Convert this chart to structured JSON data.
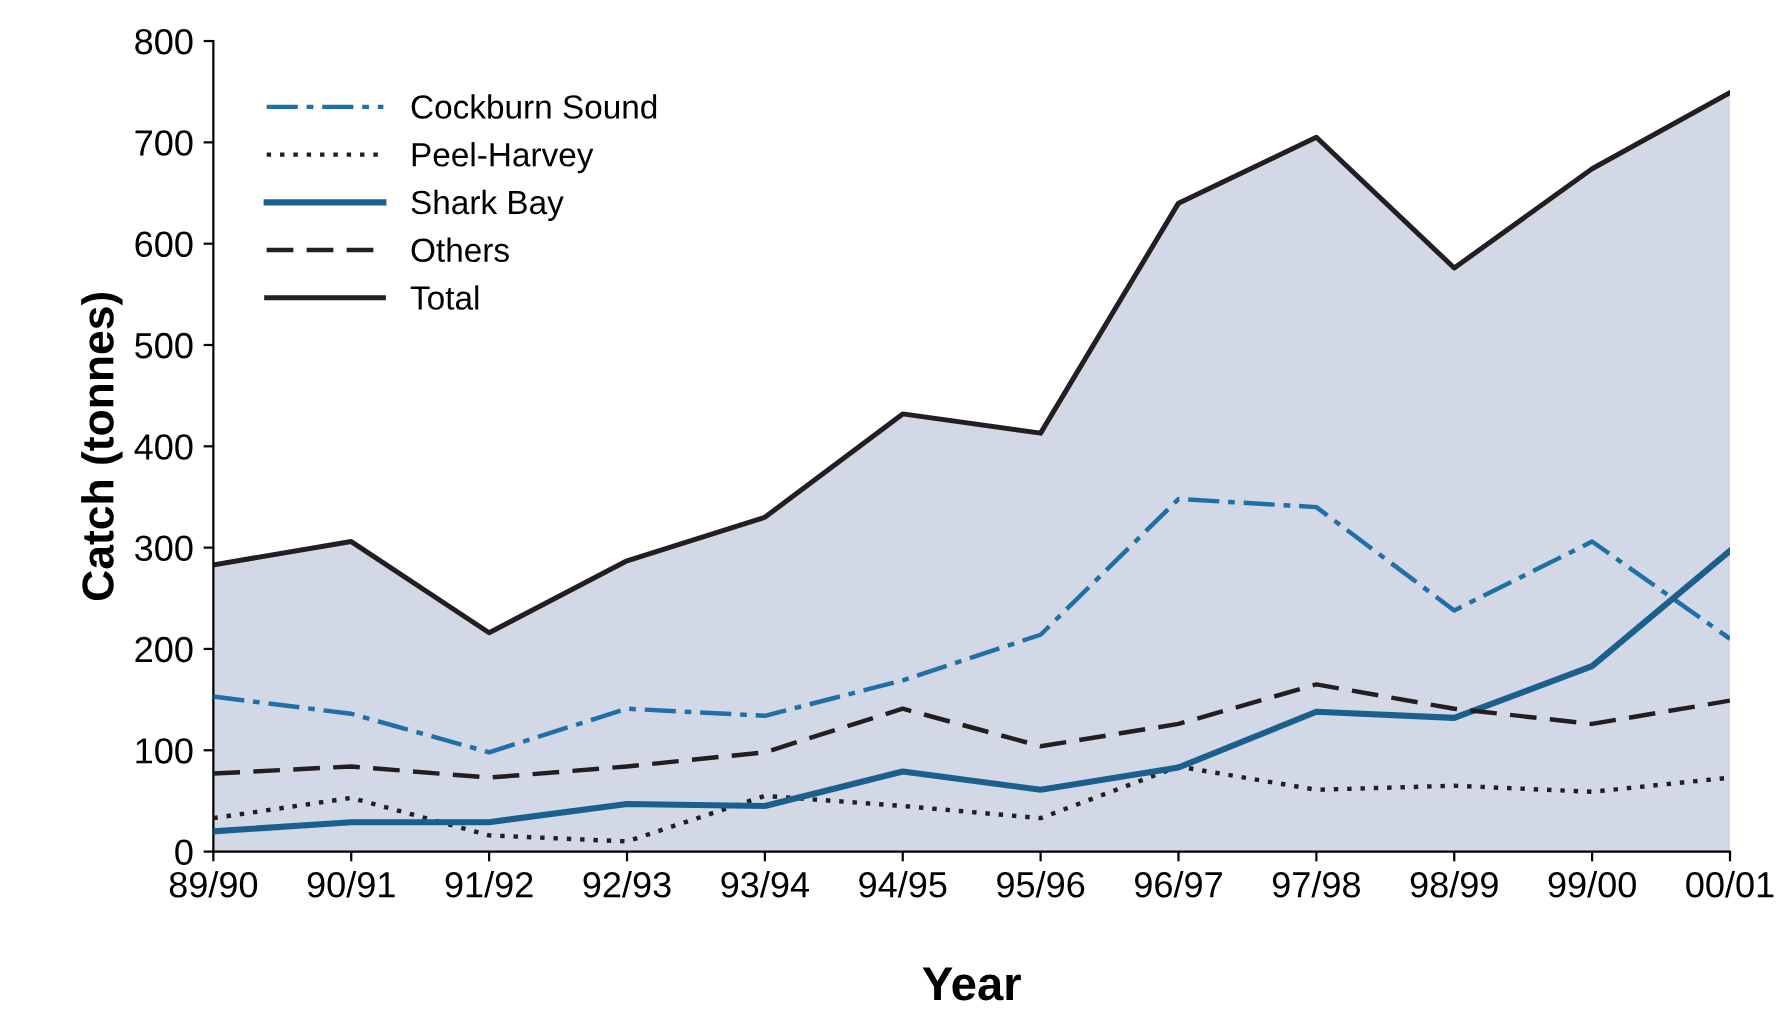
{
  "chart_data": {
    "type": "line",
    "xlabel": "Year",
    "ylabel": "Catch (tonnes)",
    "categories": [
      "89/90",
      "90/91",
      "91/92",
      "92/93",
      "93/94",
      "94/95",
      "95/96",
      "96/97",
      "97/98",
      "98/99",
      "99/00",
      "00/01"
    ],
    "series": [
      {
        "name": "Cockburn Sound",
        "color": "#1f6fa8",
        "line_style": "dashdot",
        "values": [
          153,
          136,
          98,
          141,
          134,
          169,
          214,
          348,
          340,
          238,
          306,
          210
        ]
      },
      {
        "name": "Peel-Harvey",
        "color": "#231f20",
        "line_style": "dotted",
        "values": [
          33,
          53,
          16,
          10,
          55,
          45,
          33,
          84,
          61,
          65,
          59,
          73
        ]
      },
      {
        "name": "Shark Bay",
        "color": "#1b5f8f",
        "line_style": "solid",
        "values": [
          20,
          29,
          29,
          47,
          45,
          79,
          61,
          83,
          138,
          132,
          183,
          297
        ]
      },
      {
        "name": "Others",
        "color": "#231f20",
        "line_style": "dashed",
        "values": [
          77,
          84,
          73,
          84,
          98,
          141,
          104,
          126,
          165,
          141,
          126,
          149
        ]
      },
      {
        "name": "Total",
        "type": "area",
        "color": "#d3d8e6",
        "line_style": "solid",
        "values": [
          283,
          306,
          216,
          287,
          330,
          432,
          413,
          640,
          705,
          576,
          674,
          749
        ]
      }
    ],
    "ylim": [
      0,
      800
    ],
    "yticks": [
      0,
      100,
      200,
      300,
      400,
      500,
      600,
      700,
      800
    ],
    "grid": false,
    "legend": "top left",
    "marker": "none"
  }
}
